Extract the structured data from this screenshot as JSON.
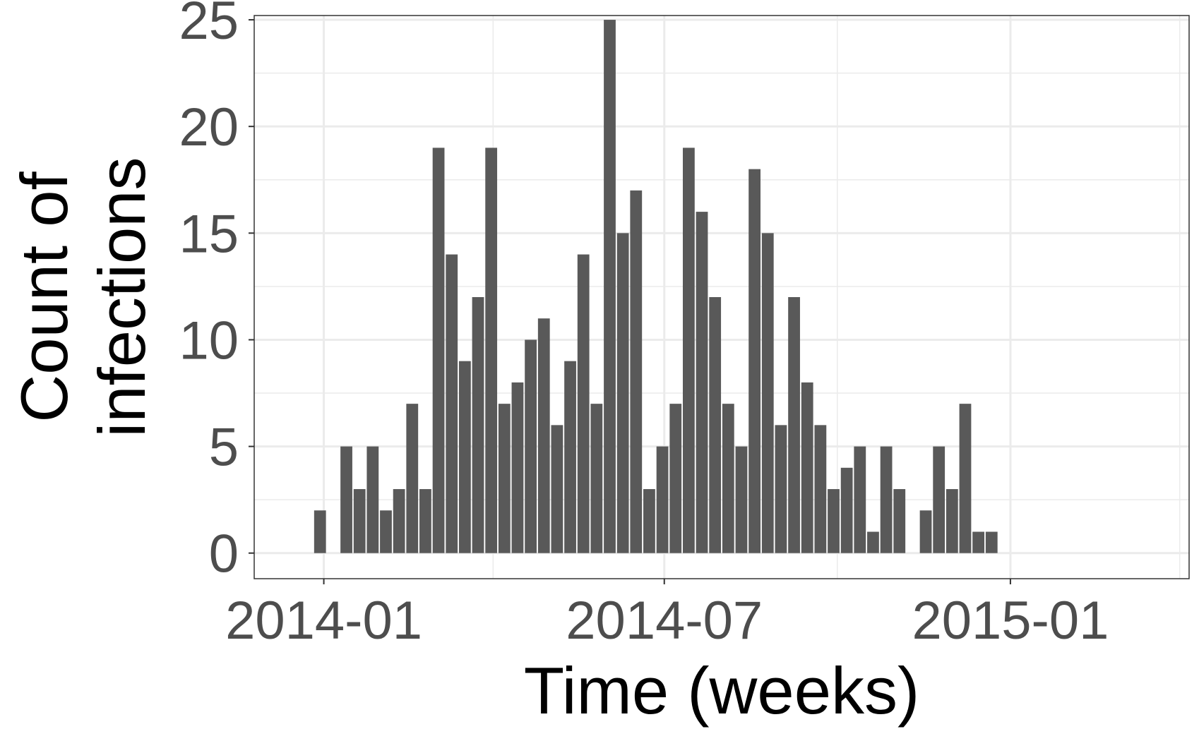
{
  "chart_data": {
    "type": "bar",
    "title": "",
    "xlabel": "Time (weeks)",
    "ylabel_lines": [
      "Count of",
      "infections"
    ],
    "ylim": [
      -1.2,
      25.2
    ],
    "xlim": [
      "2013-11-25",
      "2015-04-06"
    ],
    "grid": true,
    "legend": "none",
    "y_ticks": [
      0,
      5,
      10,
      15,
      20,
      25
    ],
    "x_ticks": [
      {
        "date": "2014-01-01",
        "label": "2014-01"
      },
      {
        "date": "2014-07-01",
        "label": "2014-07"
      },
      {
        "date": "2015-01-01",
        "label": "2015-01"
      }
    ],
    "x_minor_ticks": [
      "2014-04-01",
      "2014-10-01",
      "2015-04-01"
    ],
    "bar_width_days": 6.3,
    "bar_color": "#595959",
    "x": [
      "2013-12-30",
      "2014-01-13",
      "2014-01-20",
      "2014-01-27",
      "2014-02-03",
      "2014-02-10",
      "2014-02-17",
      "2014-02-24",
      "2014-03-03",
      "2014-03-10",
      "2014-03-17",
      "2014-03-24",
      "2014-03-31",
      "2014-04-07",
      "2014-04-14",
      "2014-04-21",
      "2014-04-28",
      "2014-05-05",
      "2014-05-12",
      "2014-05-19",
      "2014-05-26",
      "2014-06-02",
      "2014-06-09",
      "2014-06-16",
      "2014-06-23",
      "2014-06-30",
      "2014-07-07",
      "2014-07-14",
      "2014-07-21",
      "2014-07-28",
      "2014-08-04",
      "2014-08-11",
      "2014-08-18",
      "2014-08-25",
      "2014-09-01",
      "2014-09-08",
      "2014-09-15",
      "2014-09-22",
      "2014-09-29",
      "2014-10-06",
      "2014-10-13",
      "2014-10-20",
      "2014-10-27",
      "2014-11-03",
      "2014-11-17",
      "2014-11-24",
      "2014-12-01",
      "2014-12-08",
      "2014-12-15",
      "2014-12-22"
    ],
    "values": [
      2,
      5,
      3,
      5,
      2,
      3,
      7,
      3,
      19,
      14,
      9,
      12,
      19,
      7,
      8,
      10,
      11,
      6,
      9,
      14,
      7,
      25,
      15,
      17,
      3,
      5,
      7,
      19,
      16,
      12,
      7,
      5,
      18,
      15,
      6,
      12,
      8,
      6,
      3,
      4,
      5,
      1,
      5,
      3,
      2,
      5,
      3,
      7,
      1,
      1
    ]
  }
}
